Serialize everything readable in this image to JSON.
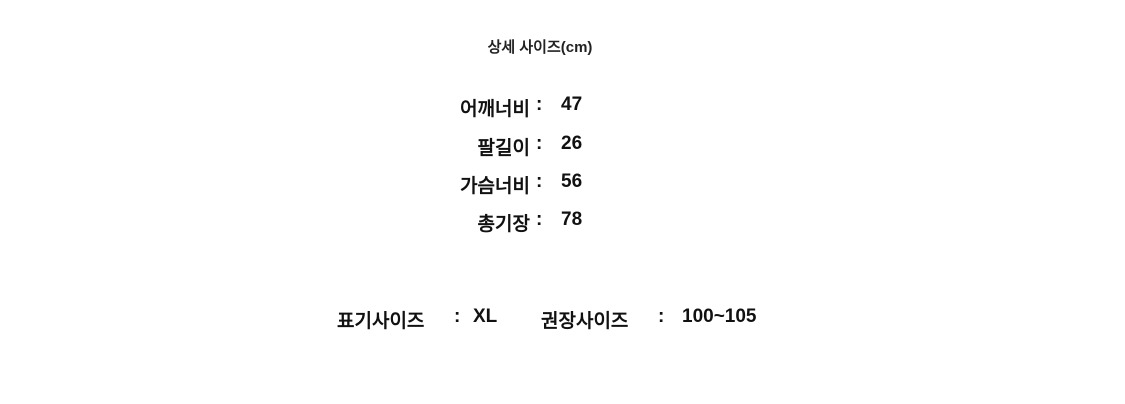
{
  "title": "상세 사이즈(cm)",
  "measurements": [
    {
      "label": "어깨너비",
      "value": "47"
    },
    {
      "label": "팔길이",
      "value": "26"
    },
    {
      "label": "가슴너비",
      "value": "56"
    },
    {
      "label": "총기장",
      "value": "78"
    }
  ],
  "separator": ":",
  "label_size": {
    "label": "표기사이즈",
    "value": "XL"
  },
  "recommended_size": {
    "label": "권장사이즈",
    "value": "100~105"
  }
}
